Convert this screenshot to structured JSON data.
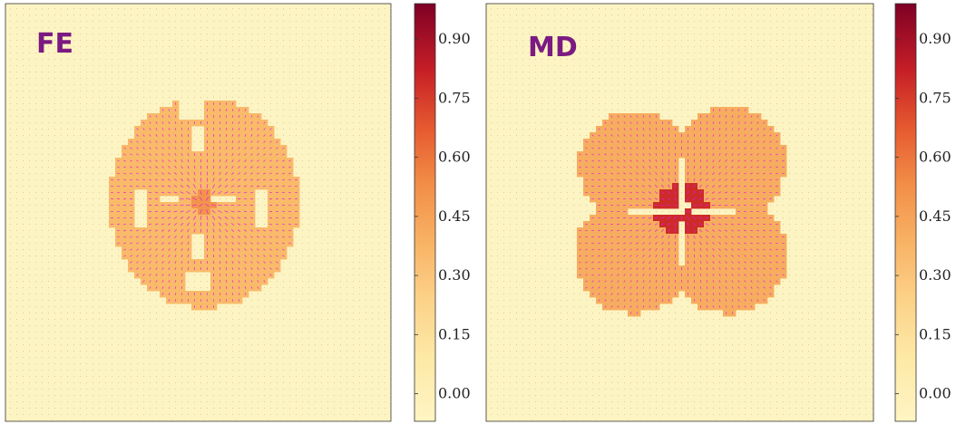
{
  "chart_data": [
    {
      "type": "heatmap",
      "panel_label": "FE",
      "field": "quiver overlay on scalar field",
      "colorbar": {
        "ticks": [
          "0.90",
          "0.75",
          "0.60",
          "0.45",
          "0.30",
          "0.15",
          "0.00"
        ],
        "tick_values": [
          0.9,
          0.75,
          0.6,
          0.45,
          0.3,
          0.15,
          0.0
        ],
        "range": [
          -0.07,
          0.99
        ]
      },
      "background_value": 0.0,
      "region_value": 0.3,
      "core_value": 0.45,
      "arrow_color": "#e31ad6"
    },
    {
      "type": "heatmap",
      "panel_label": "MD",
      "field": "quiver overlay on scalar field",
      "colorbar": {
        "ticks": [
          "0.90",
          "0.75",
          "0.60",
          "0.45",
          "0.30",
          "0.15",
          "0.00"
        ],
        "tick_values": [
          0.9,
          0.75,
          0.6,
          0.45,
          0.3,
          0.15,
          0.0
        ],
        "range": [
          -0.07,
          0.99
        ]
      },
      "background_value": 0.0,
      "region_value": 0.36,
      "core_value": 0.75,
      "arrow_color": "#e31ad6"
    }
  ],
  "colors": {
    "label": "#7b1a82",
    "background": "#fcf4c2",
    "cmap": [
      "#fff5c4",
      "#fde7a1",
      "#fbc877",
      "#f6a85a",
      "#ef7b3c",
      "#dd3e26",
      "#b3112a",
      "#7f0025"
    ]
  }
}
